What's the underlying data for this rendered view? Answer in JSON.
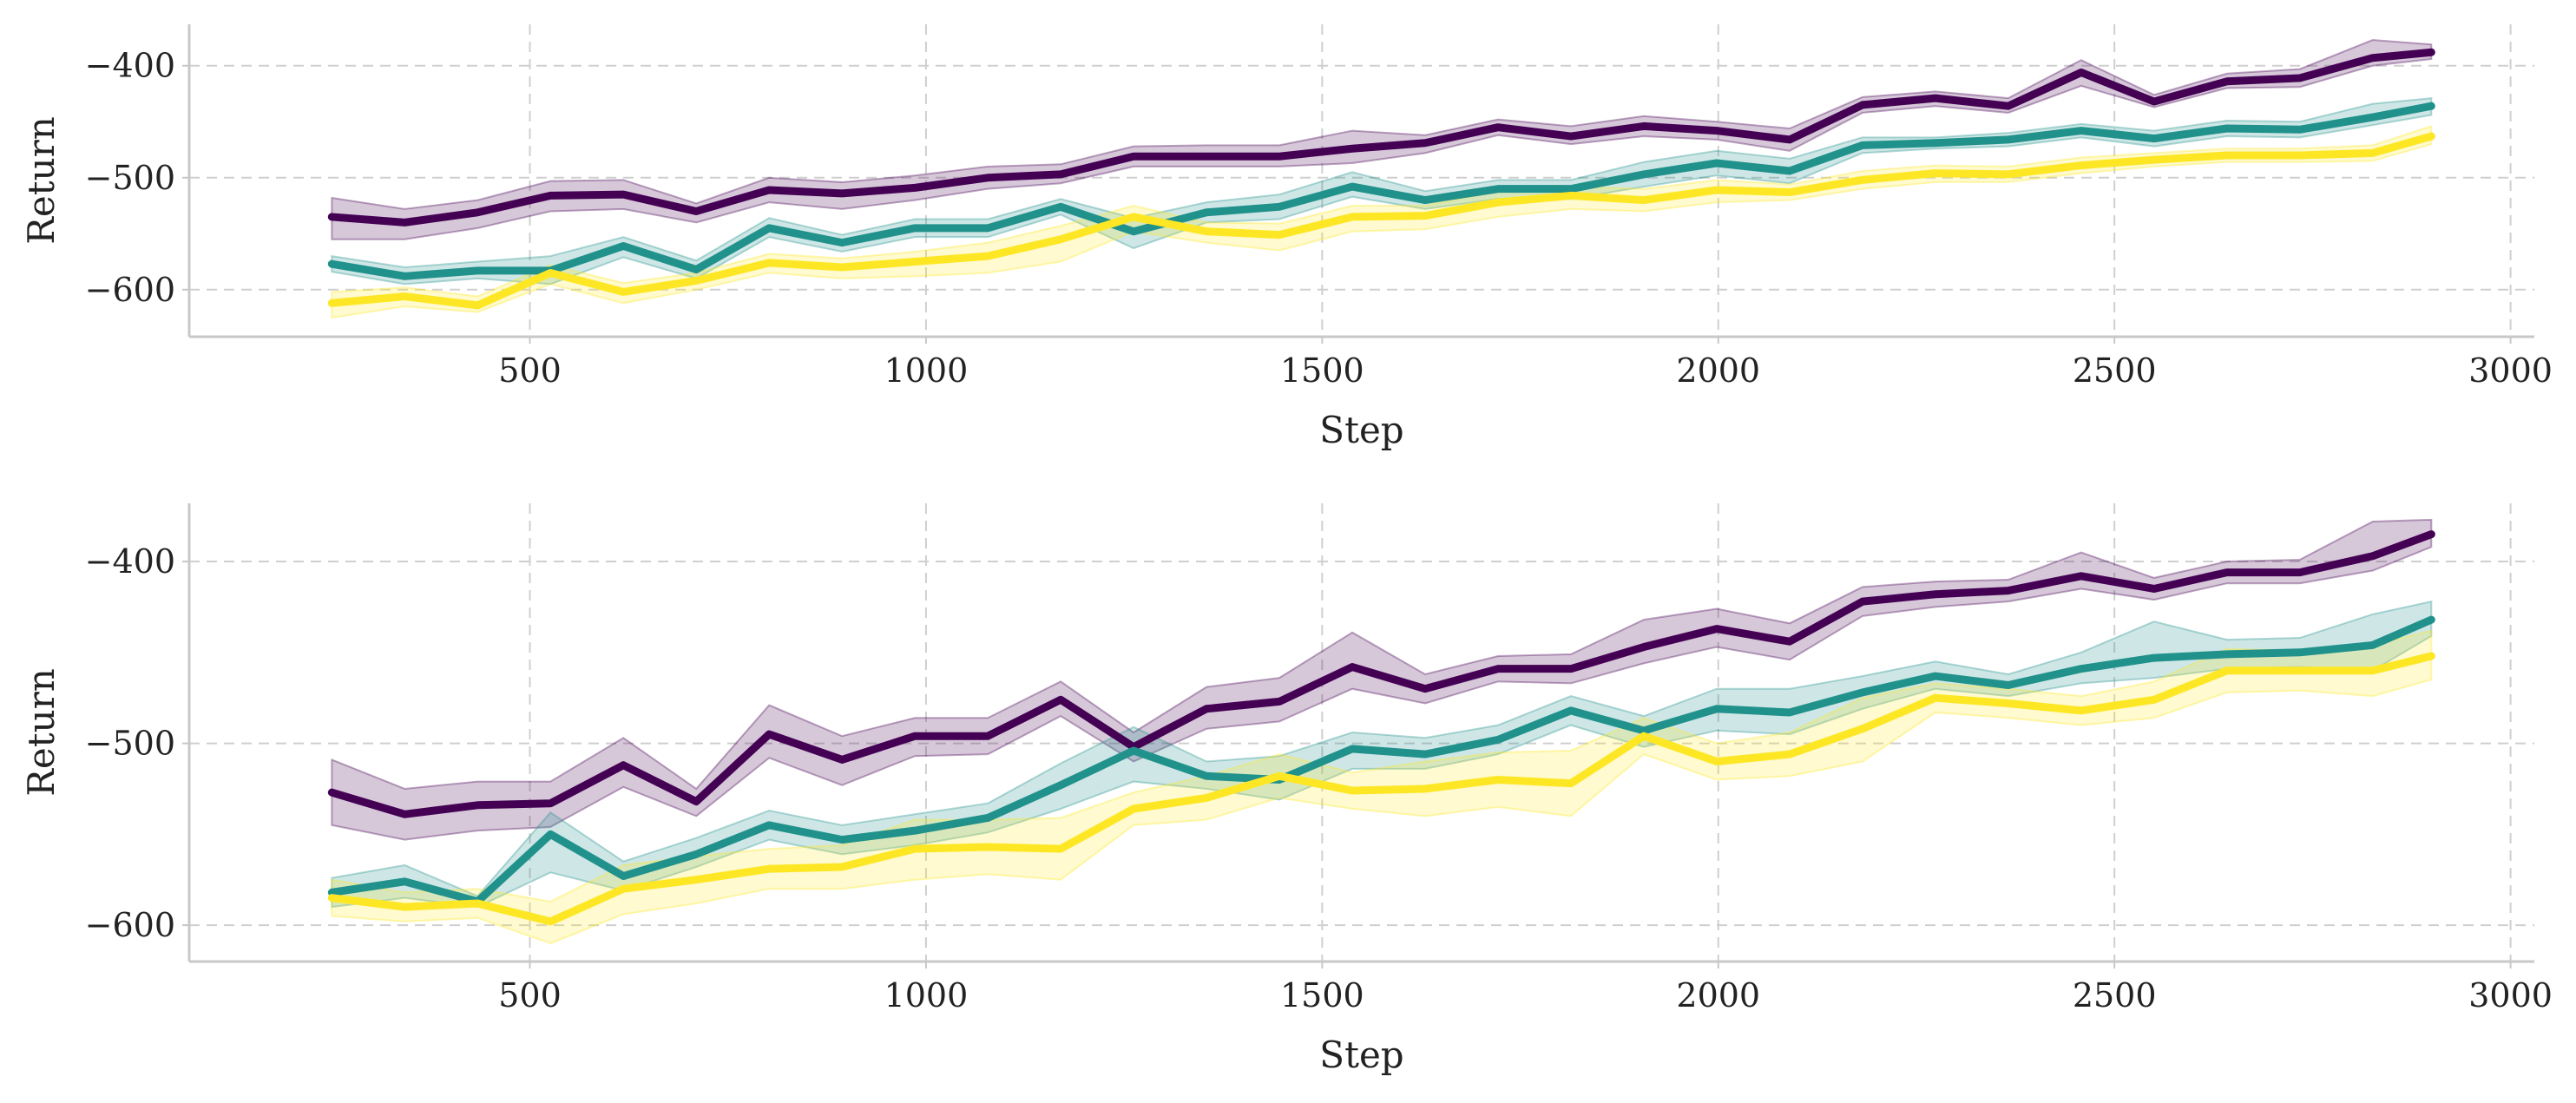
{
  "chart_data": [
    {
      "type": "line",
      "xlabel": "Step",
      "ylabel": "Return",
      "xlim": [
        70,
        3030
      ],
      "ylim": [
        -642,
        -363
      ],
      "xticks": [
        500,
        1000,
        1500,
        2000,
        2500,
        3000
      ],
      "yticks": [
        -600,
        -500,
        -400
      ],
      "grid": true,
      "x": [
        250,
        342,
        434,
        526,
        618,
        710,
        802,
        894,
        986,
        1078,
        1170,
        1262,
        1354,
        1446,
        1538,
        1630,
        1722,
        1814,
        1906,
        1998,
        2090,
        2182,
        2274,
        2366,
        2458,
        2550,
        2642,
        2734,
        2826,
        2900
      ],
      "series": [
        {
          "color": "#440154",
          "values": [
            -535,
            -540,
            -531,
            -516,
            -515,
            -530,
            -511,
            -514,
            -509,
            -500,
            -497,
            -481,
            -481,
            -481,
            -474,
            -469,
            -455,
            -463,
            -454,
            -458,
            -466,
            -435,
            -429,
            -436,
            -406,
            -432,
            -414,
            -411,
            -393,
            -388
          ],
          "lower": [
            -555,
            -555,
            -545,
            -530,
            -528,
            -540,
            -522,
            -528,
            -520,
            -510,
            -505,
            -490,
            -490,
            -490,
            -487,
            -478,
            -462,
            -470,
            -463,
            -466,
            -476,
            -442,
            -436,
            -442,
            -418,
            -437,
            -420,
            -419,
            -400,
            -394
          ],
          "upper": [
            -518,
            -528,
            -520,
            -503,
            -502,
            -523,
            -500,
            -504,
            -498,
            -490,
            -488,
            -472,
            -471,
            -471,
            -458,
            -462,
            -448,
            -454,
            -445,
            -450,
            -456,
            -428,
            -423,
            -429,
            -395,
            -426,
            -407,
            -403,
            -377,
            -381
          ]
        },
        {
          "color": "#21918c",
          "values": [
            -577,
            -588,
            -583,
            -583,
            -561,
            -582,
            -545,
            -558,
            -545,
            -545,
            -526,
            -548,
            -531,
            -526,
            -508,
            -520,
            -510,
            -510,
            -497,
            -487,
            -494,
            -471,
            -469,
            -466,
            -458,
            -465,
            -456,
            -457,
            -446,
            -436
          ],
          "lower": [
            -584,
            -595,
            -590,
            -595,
            -571,
            -590,
            -553,
            -566,
            -553,
            -553,
            -533,
            -563,
            -540,
            -537,
            -517,
            -528,
            -519,
            -519,
            -508,
            -498,
            -505,
            -478,
            -474,
            -472,
            -464,
            -472,
            -463,
            -464,
            -453,
            -444
          ],
          "upper": [
            -570,
            -580,
            -575,
            -570,
            -553,
            -574,
            -536,
            -551,
            -537,
            -537,
            -519,
            -536,
            -522,
            -515,
            -495,
            -512,
            -502,
            -502,
            -486,
            -476,
            -483,
            -464,
            -464,
            -460,
            -452,
            -458,
            -449,
            -450,
            -434,
            -429
          ]
        },
        {
          "color": "#fde725",
          "values": [
            -612,
            -606,
            -614,
            -585,
            -602,
            -592,
            -576,
            -580,
            -575,
            -570,
            -555,
            -535,
            -548,
            -551,
            -535,
            -534,
            -522,
            -516,
            -520,
            -511,
            -513,
            -502,
            -496,
            -497,
            -489,
            -484,
            -480,
            -480,
            -478,
            -463
          ],
          "lower": [
            -625,
            -615,
            -620,
            -595,
            -612,
            -600,
            -585,
            -590,
            -588,
            -585,
            -575,
            -548,
            -558,
            -565,
            -548,
            -546,
            -535,
            -528,
            -530,
            -522,
            -520,
            -510,
            -504,
            -504,
            -496,
            -490,
            -486,
            -486,
            -485,
            -470
          ],
          "upper": [
            -602,
            -598,
            -606,
            -578,
            -594,
            -585,
            -568,
            -572,
            -566,
            -558,
            -543,
            -525,
            -540,
            -541,
            -525,
            -525,
            -512,
            -508,
            -510,
            -502,
            -506,
            -494,
            -489,
            -490,
            -482,
            -478,
            -474,
            -474,
            -471,
            -454
          ]
        }
      ]
    },
    {
      "type": "line",
      "xlabel": "Step",
      "ylabel": "Return",
      "xlim": [
        70,
        3030
      ],
      "ylim": [
        -620,
        -368
      ],
      "xticks": [
        500,
        1000,
        1500,
        2000,
        2500,
        3000
      ],
      "yticks": [
        -600,
        -500,
        -400
      ],
      "grid": true,
      "x": [
        250,
        342,
        434,
        526,
        618,
        710,
        802,
        894,
        986,
        1078,
        1170,
        1262,
        1354,
        1446,
        1538,
        1630,
        1722,
        1814,
        1906,
        1998,
        2090,
        2182,
        2274,
        2366,
        2458,
        2550,
        2642,
        2734,
        2826,
        2900
      ],
      "series": [
        {
          "color": "#440154",
          "values": [
            -527,
            -539,
            -534,
            -533,
            -512,
            -532,
            -495,
            -509,
            -496,
            -496,
            -476,
            -502,
            -481,
            -477,
            -458,
            -470,
            -459,
            -459,
            -447,
            -437,
            -444,
            -422,
            -418,
            -416,
            -408,
            -415,
            -406,
            -406,
            -397,
            -385
          ],
          "lower": [
            -545,
            -553,
            -548,
            -546,
            -524,
            -540,
            -508,
            -523,
            -507,
            -506,
            -485,
            -510,
            -492,
            -488,
            -470,
            -478,
            -466,
            -467,
            -456,
            -447,
            -454,
            -430,
            -425,
            -422,
            -415,
            -421,
            -412,
            -412,
            -405,
            -392
          ],
          "upper": [
            -509,
            -525,
            -521,
            -521,
            -497,
            -525,
            -479,
            -496,
            -486,
            -486,
            -466,
            -494,
            -469,
            -464,
            -439,
            -462,
            -452,
            -451,
            -432,
            -426,
            -434,
            -414,
            -411,
            -410,
            -395,
            -409,
            -400,
            -399,
            -378,
            -377
          ]
        },
        {
          "color": "#21918c",
          "values": [
            -582,
            -576,
            -587,
            -550,
            -573,
            -561,
            -545,
            -553,
            -548,
            -541,
            -523,
            -504,
            -518,
            -520,
            -503,
            -506,
            -498,
            -482,
            -493,
            -481,
            -483,
            -472,
            -463,
            -468,
            -459,
            -453,
            -451,
            -450,
            -446,
            -432
          ],
          "lower": [
            -590,
            -585,
            -590,
            -571,
            -581,
            -568,
            -553,
            -561,
            -556,
            -549,
            -536,
            -521,
            -525,
            -531,
            -514,
            -514,
            -506,
            -490,
            -502,
            -493,
            -495,
            -481,
            -470,
            -474,
            -467,
            -464,
            -459,
            -458,
            -460,
            -441
          ],
          "upper": [
            -574,
            -567,
            -584,
            -538,
            -565,
            -552,
            -537,
            -545,
            -539,
            -533,
            -511,
            -491,
            -510,
            -507,
            -494,
            -497,
            -490,
            -474,
            -485,
            -470,
            -470,
            -463,
            -455,
            -462,
            -450,
            -433,
            -443,
            -442,
            -429,
            -422
          ]
        },
        {
          "color": "#fde725",
          "values": [
            -585,
            -590,
            -588,
            -598,
            -580,
            -575,
            -569,
            -568,
            -558,
            -557,
            -558,
            -536,
            -530,
            -518,
            -526,
            -525,
            -520,
            -522,
            -496,
            -510,
            -506,
            -492,
            -475,
            -478,
            -482,
            -476,
            -460,
            -460,
            -460,
            -452
          ],
          "lower": [
            -595,
            -598,
            -596,
            -610,
            -594,
            -588,
            -580,
            -580,
            -575,
            -572,
            -575,
            -545,
            -542,
            -530,
            -536,
            -540,
            -535,
            -540,
            -506,
            -520,
            -518,
            -510,
            -483,
            -486,
            -490,
            -486,
            -472,
            -471,
            -474,
            -465
          ],
          "upper": [
            -575,
            -582,
            -580,
            -587,
            -567,
            -562,
            -558,
            -556,
            -542,
            -542,
            -541,
            -527,
            -518,
            -506,
            -516,
            -510,
            -505,
            -504,
            -486,
            -500,
            -494,
            -475,
            -467,
            -470,
            -474,
            -466,
            -448,
            -449,
            -446,
            -438
          ]
        }
      ]
    }
  ]
}
